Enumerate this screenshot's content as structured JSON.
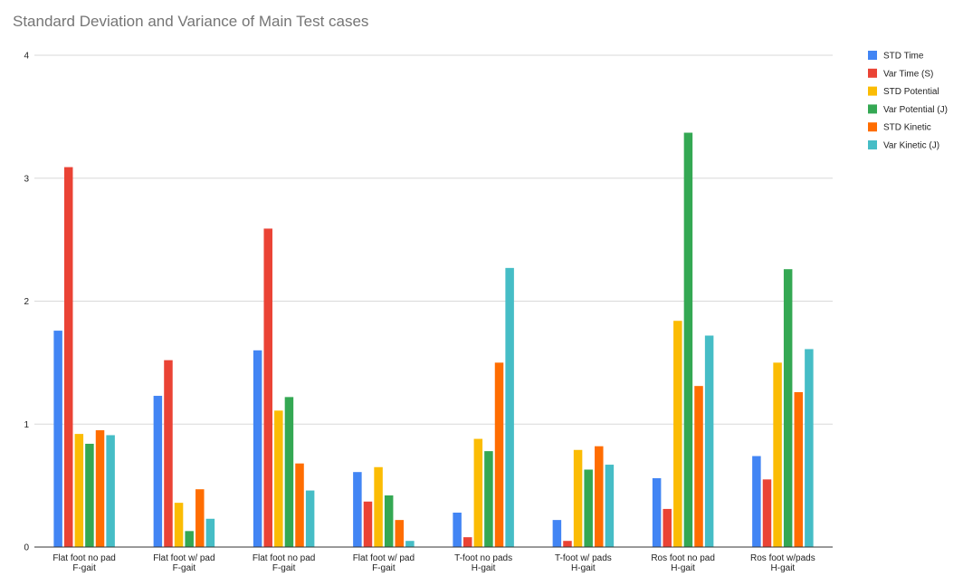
{
  "chart_data": {
    "type": "bar",
    "title": "Standard Deviation and Variance of Main Test cases",
    "xlabel": "",
    "ylabel": "",
    "ylim": [
      0,
      4
    ],
    "yticks": [
      "0",
      "1",
      "2",
      "3",
      "4"
    ],
    "grid": true,
    "legend_position": "right",
    "categories": [
      [
        "Flat foot no pad",
        "F-gait"
      ],
      [
        "Flat foot w/ pad",
        "F-gait"
      ],
      [
        "Flat foot no pad",
        "F-gait"
      ],
      [
        "Flat foot w/ pad",
        "F-gait"
      ],
      [
        "T-foot no pads",
        "H-gait"
      ],
      [
        "T-foot w/ pads",
        "H-gait"
      ],
      [
        "Ros foot no pad",
        "H-gait"
      ],
      [
        "Ros foot w/pads",
        "H-gait"
      ]
    ],
    "series": [
      {
        "name": "STD Time",
        "color": "#4285f4",
        "values": [
          1.76,
          1.23,
          1.6,
          0.61,
          0.28,
          0.22,
          0.56,
          0.74
        ]
      },
      {
        "name": "Var Time (S)",
        "color": "#ea4335",
        "values": [
          3.09,
          1.52,
          2.59,
          0.37,
          0.08,
          0.05,
          0.31,
          0.55
        ]
      },
      {
        "name": "STD Potential",
        "color": "#fbbc04",
        "values": [
          0.92,
          0.36,
          1.11,
          0.65,
          0.88,
          0.79,
          1.84,
          1.5
        ]
      },
      {
        "name": "Var Potential (J)",
        "color": "#34a853",
        "values": [
          0.84,
          0.13,
          1.22,
          0.42,
          0.78,
          0.63,
          3.37,
          2.26
        ]
      },
      {
        "name": "STD Kinetic",
        "color": "#ff6d01",
        "values": [
          0.95,
          0.47,
          0.68,
          0.22,
          1.5,
          0.82,
          1.31,
          1.26
        ]
      },
      {
        "name": "Var Kinetic (J)",
        "color": "#46bdc6",
        "values": [
          0.91,
          0.23,
          0.46,
          0.05,
          2.27,
          0.67,
          1.72,
          1.61
        ]
      }
    ]
  }
}
